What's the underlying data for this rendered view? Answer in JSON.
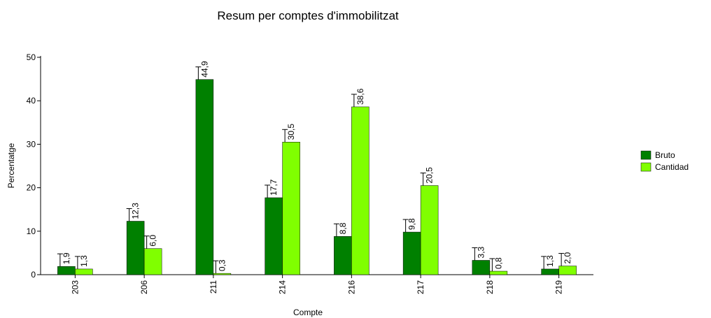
{
  "chart_data": {
    "type": "bar",
    "title": "Resum per comptes d'immobilitzat",
    "x_label": "Compte",
    "y_label": "Percentatge",
    "categories": [
      "203",
      "206",
      "211",
      "214",
      "216",
      "217",
      "218",
      "219"
    ],
    "series": [
      {
        "name": "Bruto",
        "color": "#008000",
        "values": [
          1.9,
          12.3,
          44.9,
          17.7,
          8.8,
          9.8,
          3.3,
          1.3
        ],
        "value_labels": [
          "1,9",
          "12,3",
          "44,9",
          "17,7",
          "8,8",
          "9,8",
          "3,3",
          "1,3"
        ]
      },
      {
        "name": "Cantidad",
        "color": "#80ff00",
        "values": [
          1.3,
          6.0,
          0.3,
          30.5,
          38.6,
          20.5,
          0.8,
          2.0
        ],
        "value_labels": [
          "1,3",
          "6,0",
          "0,3",
          "30,5",
          "38,6",
          "20,5",
          "0,8",
          "2,0"
        ]
      }
    ],
    "ylim": [
      0,
      50
    ],
    "yticks": [
      0,
      10,
      20,
      30,
      40,
      50
    ],
    "legend": "right"
  }
}
